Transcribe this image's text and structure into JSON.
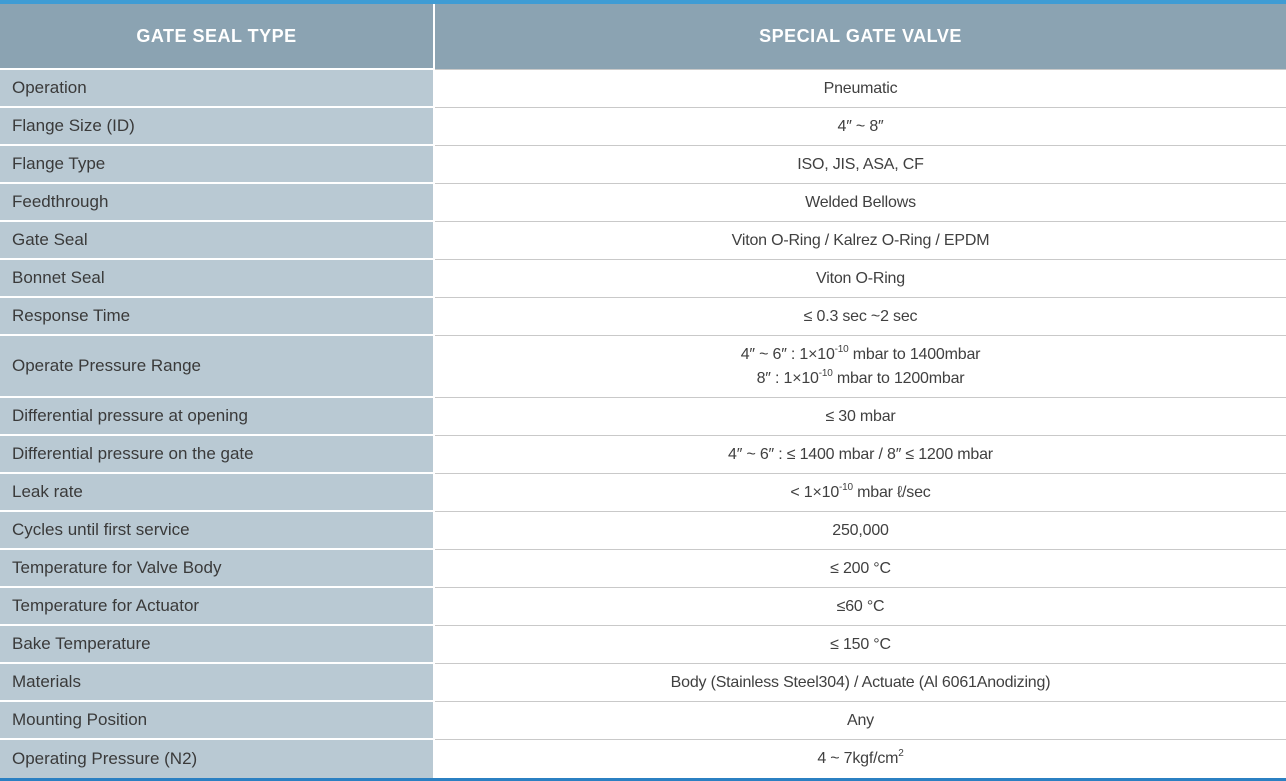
{
  "table": {
    "header": {
      "col1": "GATE SEAL TYPE",
      "col2": "SPECIAL GATE VALVE"
    },
    "rows": [
      {
        "label": "Operation",
        "value": "Pneumatic"
      },
      {
        "label": "Flange Size (ID)",
        "value": "4″ ~ 8″"
      },
      {
        "label": "Flange Type",
        "value": "ISO, JIS, ASA, CF"
      },
      {
        "label": "Feedthrough",
        "value": "Welded Bellows"
      },
      {
        "label": "Gate Seal",
        "value": "Viton O-Ring / Kalrez O-Ring / EPDM"
      },
      {
        "label": "Bonnet Seal",
        "value": "Viton O-Ring"
      },
      {
        "label": "Response Time",
        "value": "≤ 0.3 sec ~2 sec"
      },
      {
        "label": "Operate Pressure Range",
        "value_lines": [
          "4″ ~ 6″ : 1×10^{-10} mbar to 1400mbar",
          "8″ : 1×10^{-10} mbar to 1200mbar"
        ]
      },
      {
        "label": "Differential pressure at opening",
        "value": "≤ 30 mbar"
      },
      {
        "label": "Differential pressure on the gate",
        "value": "4″ ~ 6″ : ≤ 1400 mbar / 8″ ≤ 1200 mbar"
      },
      {
        "label": "Leak rate",
        "value": "< 1×10^{-10} mbar ℓ/sec"
      },
      {
        "label": "Cycles until first service",
        "value": "250,000"
      },
      {
        "label": "Temperature for Valve Body",
        "value": "≤ 200 °C"
      },
      {
        "label": "Temperature for Actuator",
        "value": "≤60 °C"
      },
      {
        "label": "Bake Temperature",
        "value": "≤ 150 °C"
      },
      {
        "label": "Materials",
        "value": "Body (Stainless Steel304) / Actuate (Al 6061Anodizing)"
      },
      {
        "label": "Mounting Position",
        "value": "Any"
      },
      {
        "label": "Operating Pressure (N2)",
        "value": "4 ~ 7kgf/cm^{2}"
      }
    ]
  },
  "colors": {
    "top_border": "#3f9cd4",
    "bottom_border": "#2b80c2",
    "header_bg": "#8ba3b2",
    "label_bg": "#b9c9d3",
    "row_divider": "#c9c9c9",
    "header_text": "#ffffff",
    "body_text": "#3a3a3a"
  }
}
